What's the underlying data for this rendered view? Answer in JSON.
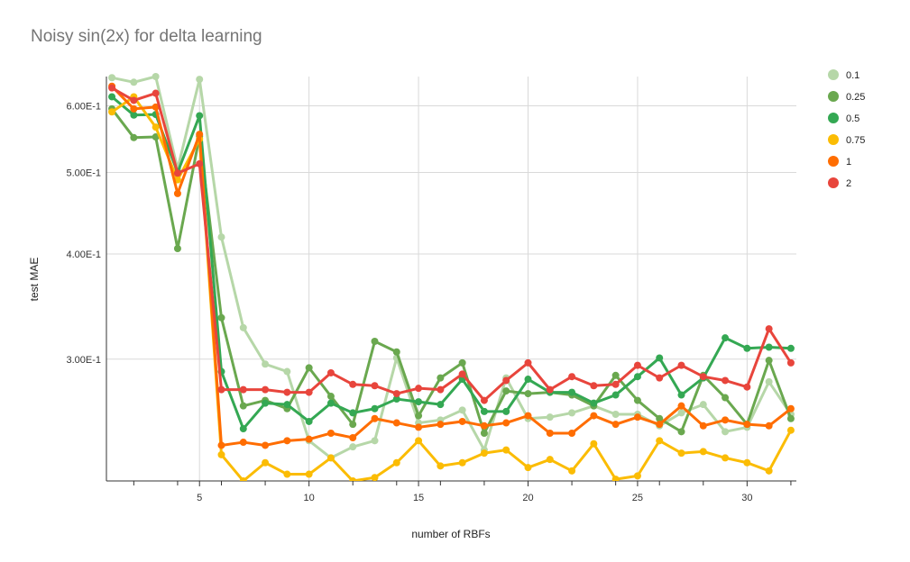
{
  "chart_data": {
    "type": "line",
    "title": "Noisy sin(2x) for delta learning",
    "xlabel": "number of RBFs",
    "ylabel": "test MAE",
    "y_scale": "log",
    "xlim": [
      0.75,
      32.25
    ],
    "ylim": [
      0.215,
      0.65
    ],
    "x_ticks": [
      5,
      10,
      15,
      20,
      25,
      30
    ],
    "y_ticks": [
      0.3,
      0.4,
      0.5,
      0.6
    ],
    "y_tick_labels": [
      "3.00E-1",
      "4.00E-1",
      "5.00E-1",
      "6.00E-1"
    ],
    "grid": true,
    "legend_position": "right",
    "x": [
      1,
      2,
      3,
      4,
      5,
      6,
      7,
      8,
      9,
      10,
      11,
      12,
      13,
      14,
      15,
      16,
      17,
      18,
      19,
      20,
      21,
      22,
      23,
      24,
      25,
      26,
      27,
      28,
      29,
      30,
      31,
      32
    ],
    "series": [
      {
        "name": "0.1",
        "color": "#b6d7a8",
        "values": [
          0.648,
          0.64,
          0.65,
          0.505,
          0.645,
          0.419,
          0.327,
          0.296,
          0.29,
          0.24,
          0.229,
          0.236,
          0.24,
          0.301,
          0.252,
          0.254,
          0.261,
          0.234,
          0.285,
          0.255,
          0.256,
          0.259,
          0.264,
          0.258,
          0.258,
          0.25,
          0.259,
          0.265,
          0.246,
          0.249,
          0.282,
          0.258
        ]
      },
      {
        "name": "0.25",
        "color": "#6aa84f",
        "values": [
          0.595,
          0.55,
          0.551,
          0.406,
          0.552,
          0.336,
          0.264,
          0.268,
          0.262,
          0.293,
          0.271,
          0.251,
          0.315,
          0.306,
          0.257,
          0.285,
          0.297,
          0.245,
          0.275,
          0.273,
          0.274,
          0.272,
          0.264,
          0.287,
          0.268,
          0.255,
          0.246,
          0.287,
          0.27,
          0.251,
          0.299,
          0.255
        ]
      },
      {
        "name": "0.5",
        "color": "#34a853",
        "values": [
          0.615,
          0.585,
          0.586,
          0.5,
          0.584,
          0.29,
          0.248,
          0.266,
          0.265,
          0.253,
          0.266,
          0.259,
          0.262,
          0.269,
          0.267,
          0.265,
          0.284,
          0.26,
          0.26,
          0.284,
          0.274,
          0.274,
          0.266,
          0.272,
          0.286,
          0.301,
          0.272,
          0.285,
          0.318,
          0.309,
          0.31,
          0.309
        ]
      },
      {
        "name": "0.75",
        "color": "#fbbc04",
        "values": [
          0.59,
          0.615,
          0.566,
          0.49,
          0.548,
          0.231,
          0.215,
          0.226,
          0.219,
          0.219,
          0.229,
          0.215,
          0.217,
          0.226,
          0.24,
          0.224,
          0.226,
          0.232,
          0.234,
          0.223,
          0.228,
          0.221,
          0.238,
          0.216,
          0.218,
          0.24,
          0.232,
          0.233,
          0.229,
          0.226,
          0.221,
          0.247
        ]
      },
      {
        "name": "1",
        "color": "#ff6d01",
        "values": [
          0.633,
          0.595,
          0.598,
          0.472,
          0.555,
          0.237,
          0.239,
          0.237,
          0.24,
          0.241,
          0.245,
          0.242,
          0.255,
          0.252,
          0.249,
          0.251,
          0.253,
          0.25,
          0.252,
          0.257,
          0.245,
          0.245,
          0.257,
          0.251,
          0.256,
          0.251,
          0.264,
          0.25,
          0.254,
          0.251,
          0.25,
          0.262
        ]
      },
      {
        "name": "2",
        "color": "#e8453c",
        "values": [
          0.63,
          0.609,
          0.621,
          0.499,
          0.512,
          0.276,
          0.276,
          0.276,
          0.274,
          0.274,
          0.289,
          0.28,
          0.279,
          0.273,
          0.277,
          0.276,
          0.288,
          0.268,
          0.283,
          0.297,
          0.276,
          0.286,
          0.279,
          0.28,
          0.295,
          0.285,
          0.295,
          0.286,
          0.283,
          0.278,
          0.326,
          0.297
        ]
      }
    ]
  }
}
